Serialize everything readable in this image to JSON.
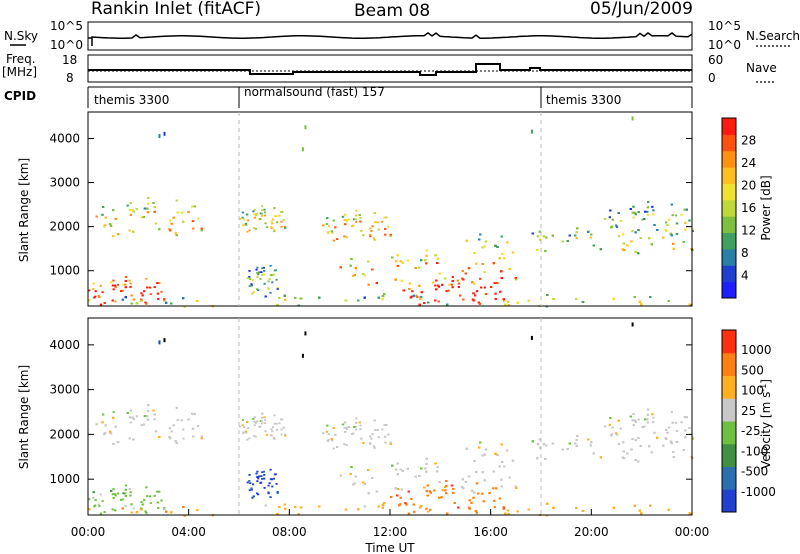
{
  "header": {
    "station": "Rankin Inlet (fitACF)",
    "beam": "Beam 08",
    "date": "05/Jun/2009"
  },
  "top_panels": {
    "nsky_label": "N.Sky",
    "nsky_ticks": [
      "10^5",
      "10^0"
    ],
    "nsearch_label": "N.Search",
    "nsearch_ticks": [
      "10^5",
      "10^0"
    ],
    "freq_label_1": "Freq.",
    "freq_label_2": "[MHz]",
    "freq_ticks": [
      "18",
      "8"
    ],
    "nave_label": "Nave",
    "nave_ticks": [
      "60",
      "0"
    ],
    "cpid_label": "CPID",
    "cpid_segments": [
      "themis 3300",
      "normalsound (fast) 157",
      "themis 3300"
    ]
  },
  "chart_data": [
    {
      "type": "heatmap",
      "name": "power",
      "ylabel": "Slant Range [km]",
      "yticks": [
        "1000",
        "2000",
        "3000",
        "4000"
      ],
      "ylim": [
        200,
        4600
      ],
      "xlim": [
        0,
        24
      ],
      "colorbar_label": "Power [dB]",
      "colorbar_ticks": [
        "28",
        "24",
        "20",
        "16",
        "12",
        "8",
        "4"
      ],
      "colors": [
        "#1e1eff",
        "#1e3fd0",
        "#2a7fa8",
        "#3fa060",
        "#7fbf3f",
        "#bfd83a",
        "#f0e030",
        "#ffc020",
        "#ff9010",
        "#ff5010",
        "#ff1a10"
      ],
      "scatter_regions": [
        {
          "t0": 0.3,
          "t1": 4.5,
          "r0": 1800,
          "r1": 2700,
          "level": 0.55
        },
        {
          "t0": 0.0,
          "t1": 3.0,
          "r0": 250,
          "r1": 900,
          "level": 0.9
        },
        {
          "t0": 6.0,
          "t1": 7.8,
          "r0": 1900,
          "r1": 2500,
          "level": 0.5
        },
        {
          "t0": 6.3,
          "t1": 7.5,
          "r0": 500,
          "r1": 1200,
          "level": 0.3
        },
        {
          "t0": 9.3,
          "t1": 12.0,
          "r0": 1700,
          "r1": 2400,
          "level": 0.6
        },
        {
          "t0": 10.0,
          "t1": 17.0,
          "r0": 700,
          "r1": 1500,
          "level": 0.65
        },
        {
          "t0": 12.5,
          "t1": 16.5,
          "r0": 250,
          "r1": 900,
          "level": 0.95
        },
        {
          "t0": 15.0,
          "t1": 24.0,
          "r0": 1400,
          "r1": 2000,
          "level": 0.45
        },
        {
          "t0": 20.5,
          "t1": 24.0,
          "r0": 1800,
          "r1": 2600,
          "level": 0.35
        },
        {
          "t0": 0.0,
          "t1": 24.0,
          "r0": 200,
          "r1": 500,
          "level": 0.4
        }
      ]
    },
    {
      "type": "heatmap",
      "name": "velocity",
      "ylabel": "Slant Range [km]",
      "yticks": [
        "1000",
        "2000",
        "3000",
        "4000"
      ],
      "ylim": [
        200,
        4600
      ],
      "xlim": [
        0,
        24
      ],
      "xticks": [
        "00:00",
        "04:00",
        "08:00",
        "12:00",
        "16:00",
        "20:00",
        "00:00"
      ],
      "xlabel": "Time UT",
      "colorbar_label": "Velocity [m s",
      "colorbar_label_exp": "-1",
      "colorbar_ticks": [
        "1000",
        "500",
        "100",
        "25",
        "-25",
        "-100",
        "-500",
        "-1000"
      ],
      "colors": [
        "#2040d0",
        "#2a6fb0",
        "#3f9040",
        "#6fc040",
        "#c8c8c8",
        "#ffb020",
        "#ff8010",
        "#ff3010"
      ],
      "scatter_regions": [
        {
          "t0": 0.3,
          "t1": 4.5,
          "r0": 1800,
          "r1": 2700,
          "level": 4
        },
        {
          "t0": 0.0,
          "t1": 3.0,
          "r0": 250,
          "r1": 900,
          "level": 3
        },
        {
          "t0": 6.0,
          "t1": 7.8,
          "r0": 1900,
          "r1": 2500,
          "level": 4
        },
        {
          "t0": 6.3,
          "t1": 7.5,
          "r0": 600,
          "r1": 1300,
          "level": 0
        },
        {
          "t0": 9.3,
          "t1": 12.0,
          "r0": 1700,
          "r1": 2400,
          "level": 4
        },
        {
          "t0": 10.0,
          "t1": 17.0,
          "r0": 700,
          "r1": 1500,
          "level": 4
        },
        {
          "t0": 12.0,
          "t1": 16.5,
          "r0": 250,
          "r1": 1000,
          "level": 6
        },
        {
          "t0": 15.0,
          "t1": 24.0,
          "r0": 1400,
          "r1": 2000,
          "level": 4
        },
        {
          "t0": 20.5,
          "t1": 24.0,
          "r0": 1800,
          "r1": 2600,
          "level": 4
        },
        {
          "t0": 0.0,
          "t1": 24.0,
          "r0": 200,
          "r1": 500,
          "level": 5
        }
      ]
    }
  ]
}
